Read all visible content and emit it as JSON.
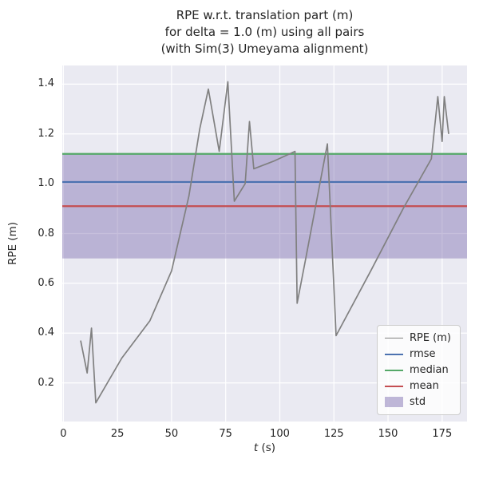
{
  "figure": {
    "background": "#ffffff",
    "axes_background": "#eaeaf2",
    "grid_color": "#ffffff",
    "text_color": "#262626"
  },
  "chart_data": {
    "type": "line",
    "title_lines": [
      "RPE w.r.t. translation part (m)",
      "for delta = 1.0 (m) using all pairs",
      "(with Sim(3) Umeyama alignment)"
    ],
    "xlabel": "t (s)",
    "xlabel_parts": {
      "italic": "t",
      "normal": " (s)"
    },
    "ylabel": "RPE (m)",
    "xlim": [
      -0.5,
      186.5
    ],
    "ylim": [
      0.045,
      1.475
    ],
    "xticks": [
      0,
      25,
      50,
      75,
      100,
      125,
      150,
      175
    ],
    "xtick_labels": [
      "0",
      "25",
      "50",
      "75",
      "100",
      "125",
      "150",
      "175"
    ],
    "yticks": [
      0.2,
      0.4,
      0.6,
      0.8,
      1.0,
      1.2,
      1.4
    ],
    "ytick_labels": [
      "0.2",
      "0.4",
      "0.6",
      "0.8",
      "1.0",
      "1.2",
      "1.4"
    ],
    "grid": true,
    "legend_position": "lower right",
    "series": [
      {
        "name": "RPE (m)",
        "kind": "line",
        "color": "#808080",
        "x": [
          8,
          11,
          13,
          15,
          27,
          40,
          50,
          58,
          63,
          67,
          72,
          76,
          79,
          84,
          86,
          88,
          97,
          107,
          108,
          112,
          122,
          126,
          142,
          157,
          170,
          173,
          175,
          176,
          178
        ],
        "y": [
          0.37,
          0.24,
          0.42,
          0.12,
          0.3,
          0.45,
          0.65,
          0.95,
          1.22,
          1.38,
          1.13,
          1.41,
          0.93,
          1.0,
          1.25,
          1.06,
          1.09,
          1.13,
          0.52,
          0.7,
          1.16,
          0.39,
          0.65,
          0.9,
          1.1,
          1.35,
          1.17,
          1.35,
          1.2
        ]
      },
      {
        "name": "rmse",
        "kind": "hline",
        "color": "#4c72b0",
        "value": 1.007
      },
      {
        "name": "median",
        "kind": "hline",
        "color": "#55a868",
        "value": 1.12
      },
      {
        "name": "mean",
        "kind": "hline",
        "color": "#c44e52",
        "value": 0.91
      },
      {
        "name": "std",
        "kind": "band",
        "color": "#8172b2",
        "lo": 0.7,
        "hi": 1.12
      }
    ]
  }
}
